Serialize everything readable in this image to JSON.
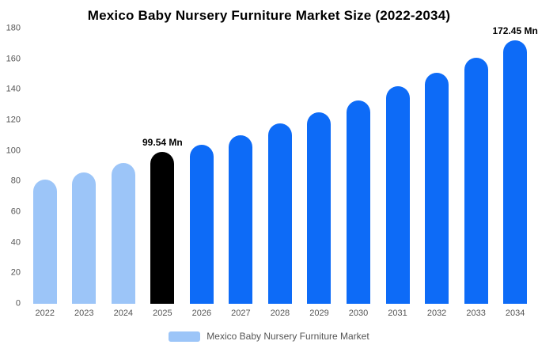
{
  "chart_data": {
    "type": "bar",
    "title": "Mexico Baby Nursery Furniture Market Size (2022-2034)",
    "categories": [
      "2022",
      "2023",
      "2024",
      "2025",
      "2026",
      "2027",
      "2028",
      "2029",
      "2030",
      "2031",
      "2032",
      "2033",
      "2034"
    ],
    "values": [
      81,
      86,
      92,
      99.54,
      104,
      110,
      118,
      125,
      133,
      142,
      151,
      161,
      172.45
    ],
    "point_labels": [
      "",
      "",
      "",
      "99.54 Mn",
      "",
      "",
      "",
      "",
      "",
      "",
      "",
      "",
      "172.45 Mn"
    ],
    "bar_roles": [
      "light",
      "light",
      "light",
      "highlight",
      "primary",
      "primary",
      "primary",
      "primary",
      "primary",
      "primary",
      "primary",
      "primary",
      "primary"
    ],
    "colors": {
      "light": "#9cc5f8",
      "primary": "#0d6bf7",
      "highlight": "#000000"
    },
    "xlabel": "",
    "ylabel": "",
    "ylim": [
      0,
      180
    ],
    "yticks": [
      0,
      20,
      40,
      60,
      80,
      100,
      120,
      140,
      160,
      180
    ],
    "grid": false,
    "legend": {
      "position": "bottom",
      "label": "Mexico Baby Nursery Furniture Market",
      "swatch_color": "#9cc5f8"
    }
  }
}
